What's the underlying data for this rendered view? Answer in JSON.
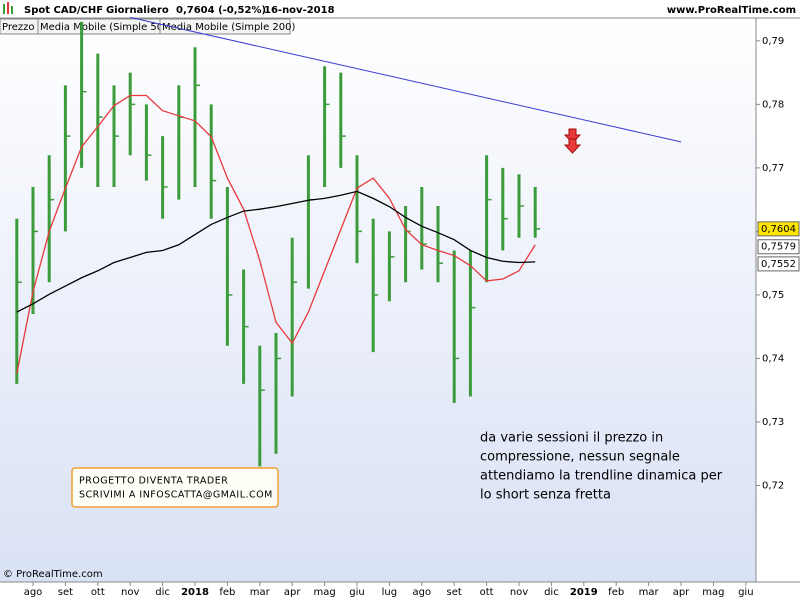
{
  "header": {
    "title": "Spot CAD/CHF",
    "period": "Giornaliero",
    "quote": "0,7604 (-0,52%)",
    "date": "16-nov-2018",
    "site": "www.ProRealTime.com"
  },
  "footer": "© ProRealTime.com",
  "box_note": [
    "PROGETTO DIVENTA TRADER",
    "SCRIVIMI A INFOSCATTA@GMAIL.COM"
  ],
  "comment": [
    "da varie sessioni il prezzo in",
    "compressione, nessun segnale",
    "attendiamo la trendline dinamica per",
    "lo short senza fretta"
  ],
  "chart_data": {
    "type": "ohlc",
    "categories": [
      null,
      "ago",
      null,
      "set",
      null,
      "ott",
      null,
      "nov",
      null,
      "dic",
      null,
      "2018",
      null,
      "feb",
      null,
      "mar",
      null,
      "apr",
      null,
      "mag",
      null,
      "giu",
      null,
      "lug",
      null,
      "ago",
      null,
      "set",
      null,
      "ott",
      null,
      "nov",
      null,
      "dic",
      null,
      "2019",
      null,
      "feb",
      null,
      "mar",
      null,
      "apr",
      null,
      "mag",
      null,
      "giu"
    ],
    "ylim": [
      0.7048,
      0.7936
    ],
    "yticks": [
      {
        "value": 0.72,
        "label": "0,72"
      },
      {
        "value": 0.73,
        "label": "0,73"
      },
      {
        "value": 0.74,
        "label": "0,74"
      },
      {
        "value": 0.75,
        "label": "0,75"
      },
      {
        "value": 0.76,
        "label": "0,76"
      },
      {
        "value": 0.77,
        "label": "0,77"
      },
      {
        "value": 0.78,
        "label": "0,78"
      },
      {
        "value": 0.79,
        "label": "0,79"
      }
    ],
    "series": [
      {
        "name": "Prezzo",
        "color": "#3c9c3c",
        "high": [
          0.762,
          0.767,
          0.772,
          0.783,
          0.793,
          0.788,
          0.783,
          0.785,
          0.78,
          0.775,
          0.783,
          0.789,
          0.78,
          0.767,
          0.754,
          0.742,
          0.744,
          0.759,
          0.772,
          0.786,
          0.785,
          0.772,
          0.762,
          0.76,
          0.764,
          0.767,
          0.764,
          0.757,
          0.757,
          0.772,
          0.77,
          0.769,
          0.767,
          null,
          null,
          null,
          null,
          null,
          null,
          null,
          null,
          null,
          null,
          null,
          null,
          null
        ],
        "low": [
          0.736,
          0.747,
          0.752,
          0.76,
          0.77,
          0.767,
          0.767,
          0.772,
          0.768,
          0.762,
          0.765,
          0.767,
          0.762,
          0.742,
          0.736,
          0.723,
          0.725,
          0.734,
          0.751,
          0.767,
          0.77,
          0.755,
          0.741,
          0.749,
          0.752,
          0.754,
          0.752,
          0.733,
          0.734,
          0.752,
          0.757,
          0.759,
          0.759,
          null,
          null,
          null,
          null,
          null,
          null,
          null,
          null,
          null,
          null,
          null,
          null,
          null
        ],
        "values": [
          0.752,
          0.76,
          0.765,
          0.775,
          0.782,
          0.778,
          0.775,
          0.78,
          0.772,
          0.767,
          0.778,
          0.783,
          0.768,
          0.75,
          0.745,
          0.735,
          0.74,
          0.752,
          0.765,
          0.78,
          0.775,
          0.76,
          0.75,
          0.756,
          0.76,
          0.758,
          0.755,
          0.74,
          0.748,
          0.765,
          0.762,
          0.764,
          0.7604,
          null,
          null,
          null,
          null,
          null,
          null,
          null,
          null,
          null,
          null,
          null,
          null,
          null
        ],
        "value_labels": [
          null,
          null,
          null,
          null,
          null,
          null,
          null,
          null,
          null,
          null,
          null,
          null,
          null,
          null,
          null,
          null,
          null,
          null,
          null,
          null,
          null,
          null,
          null,
          null,
          null,
          null,
          null,
          null,
          null,
          null,
          null,
          null,
          "0,7604",
          null,
          null,
          null,
          null,
          null,
          null,
          null,
          null,
          null,
          null,
          null,
          null,
          null
        ]
      },
      {
        "name": "Media Mobile (Simple 50)",
        "type": "line",
        "color": "#e8393c",
        "values": [
          0.7376,
          0.7505,
          0.76,
          0.7668,
          0.7733,
          0.7765,
          0.7798,
          0.7814,
          0.7814,
          0.779,
          0.7782,
          0.7774,
          0.7749,
          0.7684,
          0.7635,
          0.7554,
          0.7457,
          0.7424,
          0.7473,
          0.7538,
          0.7603,
          0.7668,
          0.7684,
          0.7652,
          0.7603,
          0.7579,
          0.757,
          0.7562,
          0.7546,
          0.7522,
          0.7525,
          0.7538,
          0.7579,
          null,
          null,
          null,
          null,
          null,
          null,
          null,
          null,
          null,
          null,
          null,
          null,
          null
        ],
        "value_labels": [
          null,
          null,
          null,
          null,
          null,
          null,
          null,
          null,
          null,
          null,
          null,
          null,
          null,
          null,
          null,
          null,
          null,
          null,
          null,
          null,
          null,
          null,
          null,
          null,
          null,
          null,
          null,
          null,
          null,
          null,
          null,
          null,
          "0,7579",
          null,
          null,
          null,
          null,
          null,
          null,
          null,
          null,
          null,
          null,
          null,
          null,
          null
        ]
      },
      {
        "name": "Media Mobile (Simple 200)",
        "type": "line",
        "color": "#000000",
        "values": [
          0.7473,
          0.7486,
          0.7501,
          0.7514,
          0.7527,
          0.7538,
          0.7551,
          0.7559,
          0.7567,
          0.757,
          0.7579,
          0.7595,
          0.7611,
          0.7622,
          0.7632,
          0.7635,
          0.7639,
          0.7644,
          0.7649,
          0.7652,
          0.7657,
          0.7663,
          0.7652,
          0.7639,
          0.7622,
          0.7608,
          0.7598,
          0.7587,
          0.757,
          0.7559,
          0.7553,
          0.7551,
          0.7552,
          null,
          null,
          null,
          null,
          null,
          null,
          null,
          null,
          null,
          null,
          null,
          null,
          null
        ],
        "value_labels": [
          null,
          null,
          null,
          null,
          null,
          null,
          null,
          null,
          null,
          null,
          null,
          null,
          null,
          null,
          null,
          null,
          null,
          null,
          null,
          null,
          null,
          null,
          null,
          null,
          null,
          null,
          null,
          null,
          null,
          null,
          null,
          null,
          "0,7552",
          null,
          null,
          null,
          null,
          null,
          null,
          null,
          null,
          null,
          null,
          null,
          null,
          null
        ]
      }
    ],
    "trendline": {
      "color": "#3b3bd0",
      "values": [
        null,
        null,
        null,
        null,
        null,
        null,
        null,
        0.7937,
        null,
        null,
        null,
        null,
        null,
        null,
        null,
        null,
        null,
        null,
        null,
        null,
        null,
        null,
        null,
        null,
        null,
        null,
        null,
        null,
        null,
        null,
        null,
        null,
        null,
        null,
        null,
        null,
        null,
        null,
        null,
        null,
        null,
        0.7741,
        null,
        null,
        null,
        null
      ]
    }
  }
}
